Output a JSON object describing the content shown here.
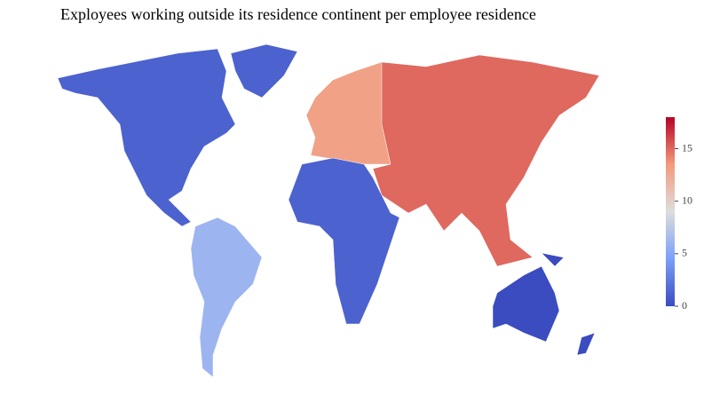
{
  "chart_data": {
    "type": "choropleth",
    "title": "Exployees working outside its residence continent per employee residence",
    "categories": [
      "North America",
      "South America",
      "Europe",
      "Asia",
      "Africa",
      "Oceania"
    ],
    "values": [
      1.2,
      6,
      13,
      15,
      1.2,
      0
    ],
    "zlim": [
      0,
      18
    ],
    "zticks": [
      0,
      5,
      10,
      15
    ],
    "colorscale": [
      [
        0,
        "#3b4cc0"
      ],
      [
        0.25,
        "#7b9ff9"
      ],
      [
        0.5,
        "#dddddd"
      ],
      [
        0.75,
        "#f49a7b"
      ],
      [
        1,
        "#b40426"
      ]
    ],
    "colorbar": true
  }
}
